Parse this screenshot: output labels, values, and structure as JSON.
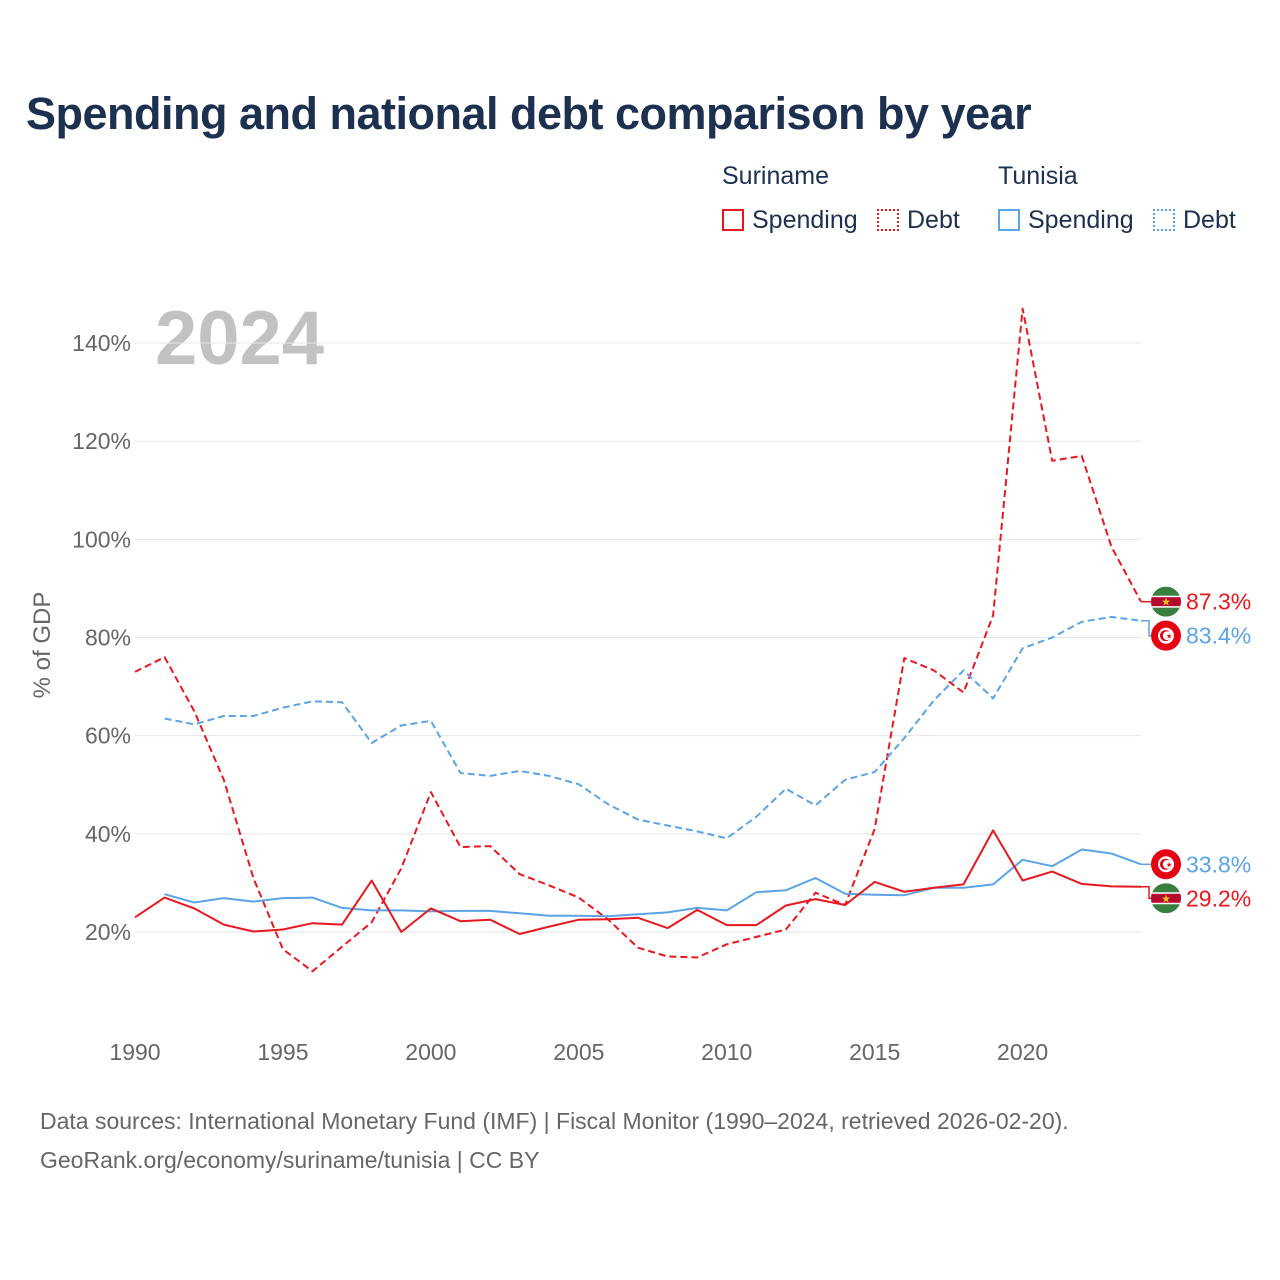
{
  "title": "Spending and national debt comparison by year",
  "legend": {
    "groups": [
      {
        "country": "Suriname",
        "color": "#e8181f",
        "items": [
          {
            "label": "Spending",
            "style": "solid"
          },
          {
            "label": "Debt",
            "style": "dotted"
          }
        ]
      },
      {
        "country": "Tunisia",
        "color": "#5ba4e5",
        "items": [
          {
            "label": "Spending",
            "style": "solid"
          },
          {
            "label": "Debt",
            "style": "dotted"
          }
        ]
      }
    ]
  },
  "year_watermark": "2024",
  "chart_data": {
    "type": "line",
    "title": "Spending and national debt comparison by year",
    "xlabel": "",
    "ylabel": "% of GDP",
    "xlim": [
      1990,
      2024
    ],
    "ylim": [
      0,
      150
    ],
    "x_ticks": [
      1990,
      1995,
      2000,
      2005,
      2010,
      2015,
      2020
    ],
    "y_ticks": [
      20,
      40,
      60,
      80,
      100,
      120,
      140
    ],
    "y_tick_labels": [
      "20%",
      "40%",
      "60%",
      "80%",
      "100%",
      "120%",
      "140%"
    ],
    "grid": true,
    "series": [
      {
        "name": "Suriname Debt",
        "country": "Suriname",
        "metric": "Debt",
        "color": "#e8181f",
        "dash": "dashed",
        "x": [
          1990,
          1991,
          1992,
          1993,
          1994,
          1995,
          1996,
          1997,
          1998,
          1999,
          2000,
          2001,
          2002,
          2003,
          2004,
          2005,
          2006,
          2007,
          2008,
          2009,
          2010,
          2011,
          2012,
          2013,
          2014,
          2015,
          2016,
          2017,
          2018,
          2019,
          2020,
          2021,
          2022,
          2023,
          2024
        ],
        "values": [
          73.0,
          76.0,
          65.0,
          51.0,
          31.0,
          16.5,
          12.0,
          17.0,
          22.0,
          33.0,
          48.5,
          37.3,
          37.5,
          31.8,
          29.5,
          27.0,
          22.5,
          16.8,
          15.0,
          14.8,
          17.5,
          19.0,
          20.5,
          28.0,
          25.5,
          41.0,
          75.8,
          73.3,
          68.8,
          84.5,
          147.0,
          116.0,
          117.0,
          98.5,
          87.3
        ],
        "end_label": "87.3%"
      },
      {
        "name": "Tunisia Debt",
        "country": "Tunisia",
        "metric": "Debt",
        "color": "#5ba4e5",
        "dash": "dashed",
        "x": [
          1991,
          1992,
          1993,
          1994,
          1995,
          1996,
          1997,
          1998,
          1999,
          2000,
          2001,
          2002,
          2003,
          2004,
          2005,
          2006,
          2007,
          2008,
          2009,
          2010,
          2011,
          2012,
          2013,
          2014,
          2015,
          2016,
          2017,
          2018,
          2019,
          2020,
          2021,
          2022,
          2023,
          2024
        ],
        "values": [
          63.5,
          62.3,
          64.0,
          64.0,
          65.7,
          67.0,
          66.8,
          58.5,
          62.1,
          63.0,
          52.4,
          51.8,
          52.8,
          51.8,
          50.1,
          46.0,
          42.9,
          41.7,
          40.5,
          39.1,
          43.5,
          49.2,
          45.8,
          51.0,
          52.6,
          59.5,
          67.2,
          73.3,
          67.6,
          77.8,
          80.0,
          83.2,
          84.2,
          83.4
        ],
        "end_label": "83.4%"
      },
      {
        "name": "Tunisia Spending",
        "country": "Tunisia",
        "metric": "Spending",
        "color": "#5ba4e5",
        "dash": "solid",
        "x": [
          1991,
          1992,
          1993,
          1994,
          1995,
          1996,
          1997,
          1998,
          1999,
          2000,
          2001,
          2002,
          2003,
          2004,
          2005,
          2006,
          2007,
          2008,
          2009,
          2010,
          2011,
          2012,
          2013,
          2014,
          2015,
          2016,
          2017,
          2018,
          2019,
          2020,
          2021,
          2022,
          2023,
          2024
        ],
        "values": [
          27.7,
          26.0,
          26.9,
          26.2,
          26.9,
          27.0,
          24.9,
          24.4,
          24.4,
          24.2,
          24.3,
          24.3,
          23.8,
          23.3,
          23.3,
          23.2,
          23.6,
          24.0,
          24.9,
          24.4,
          28.1,
          28.5,
          31.0,
          27.8,
          27.6,
          27.5,
          29.0,
          29.0,
          29.7,
          34.7,
          33.4,
          36.8,
          36.0,
          33.8
        ],
        "end_label": "33.8%"
      },
      {
        "name": "Suriname Spending",
        "country": "Suriname",
        "metric": "Spending",
        "color": "#e8181f",
        "dash": "solid",
        "x": [
          1990,
          1991,
          1992,
          1993,
          1994,
          1995,
          1996,
          1997,
          1998,
          1999,
          2000,
          2001,
          2002,
          2003,
          2004,
          2005,
          2006,
          2007,
          2008,
          2009,
          2010,
          2011,
          2012,
          2013,
          2014,
          2015,
          2016,
          2017,
          2018,
          2019,
          2020,
          2021,
          2022,
          2023,
          2024
        ],
        "values": [
          23.0,
          27.0,
          24.8,
          21.5,
          20.1,
          20.5,
          21.8,
          21.5,
          30.5,
          20.0,
          24.8,
          22.2,
          22.5,
          19.6,
          21.1,
          22.5,
          22.6,
          22.9,
          20.8,
          24.5,
          21.4,
          21.4,
          25.4,
          26.7,
          25.5,
          30.2,
          28.2,
          29.0,
          29.7,
          40.7,
          30.5,
          32.3,
          29.8,
          29.3,
          29.2
        ],
        "end_label": "29.2%"
      }
    ]
  },
  "end_badges": [
    {
      "series": "Suriname Debt",
      "flag": "suriname-flag"
    },
    {
      "series": "Tunisia Debt",
      "flag": "tunisia-flag"
    },
    {
      "series": "Tunisia Spending",
      "flag": "tunisia-flag"
    },
    {
      "series": "Suriname Spending",
      "flag": "suriname-flag"
    }
  ],
  "source": {
    "line1": "Data sources: International Monetary Fund (IMF) | Fiscal Monitor (1990–2024, retrieved 2026-02-20).",
    "line2": "GeoRank.org/economy/suriname/tunisia | CC BY"
  }
}
